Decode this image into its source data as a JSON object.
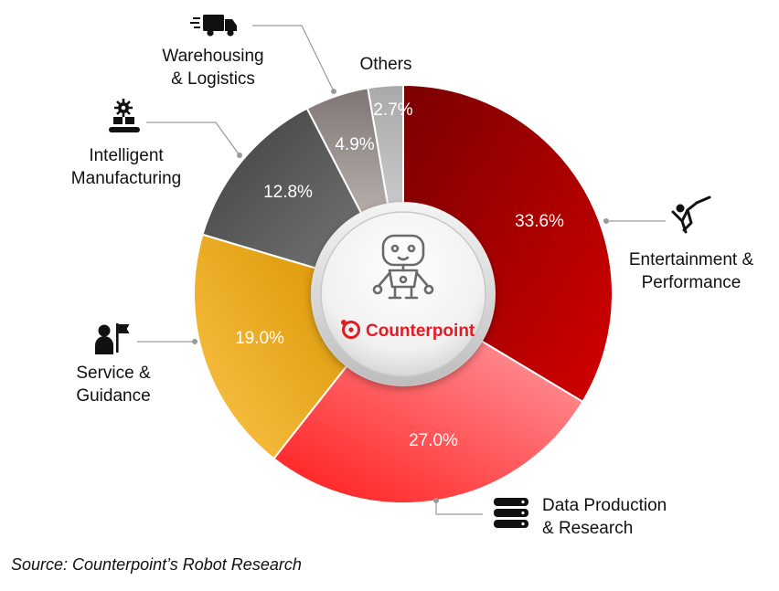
{
  "chart_data": {
    "type": "pie",
    "categories": [
      "Entertainment & Performance",
      "Data Production & Research",
      "Service & Guidance",
      "Intelligent Manufacturing",
      "Warehousing & Logistics",
      "Others"
    ],
    "values": [
      33.6,
      27.0,
      19.0,
      12.8,
      4.9,
      2.7
    ],
    "value_labels": [
      "33.6%",
      "27.0%",
      "19.0%",
      "12.8%",
      "4.9%",
      "2.7%"
    ],
    "label_lines": [
      [
        "Entertainment &",
        "Performance"
      ],
      [
        "Data Production",
        "& Research"
      ],
      [
        "Service &",
        "Guidance"
      ],
      [
        "Intelligent",
        "Manufacturing"
      ],
      [
        "Warehousing",
        "& Logistics"
      ],
      [
        "Others"
      ]
    ],
    "icons": [
      "performer-icon",
      "database-icon",
      "guide-flag-icon",
      "factory-gear-icon",
      "truck-icon",
      ""
    ],
    "colors": [
      [
        "#7a0000",
        "#d40000"
      ],
      [
        "#ff9aa0",
        "#ff1a1a"
      ],
      [
        "#fbc44a",
        "#d99400"
      ],
      [
        "#3f3f3f",
        "#747474"
      ],
      [
        "#7f7674",
        "#b5aeab"
      ],
      [
        "#a9a9a9",
        "#c9c9c9"
      ]
    ],
    "donut": true,
    "legend": "none"
  },
  "center": {
    "brand": "Counterpoint",
    "brand_color": "#e31b23",
    "robot_icon": "robot-icon",
    "logo_icon": "counterpoint-logo-icon"
  },
  "source": "Source: Counterpoint’s Robot Research"
}
